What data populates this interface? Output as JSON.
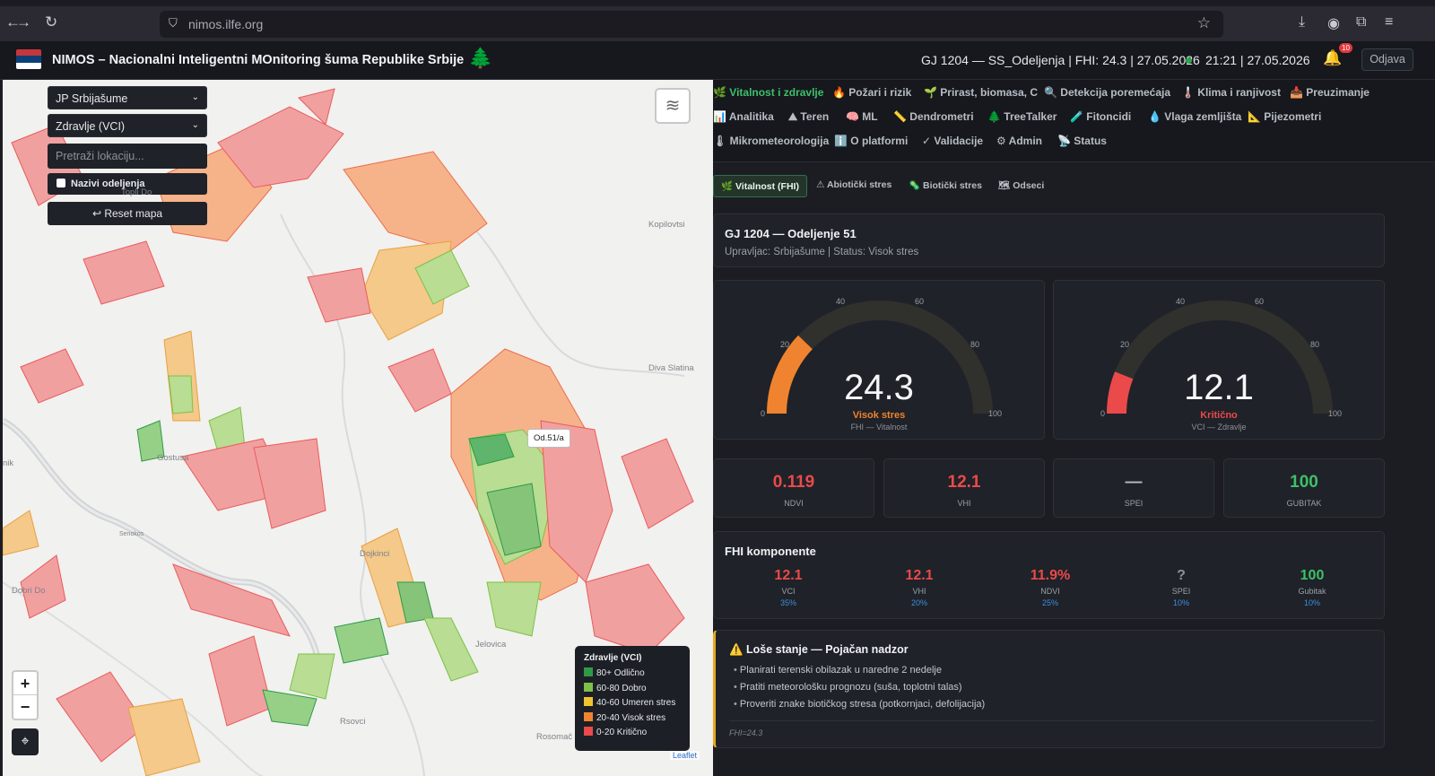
{
  "browser": {
    "url": "nimos.ilfe.org"
  },
  "header": {
    "title": "NIMOS – Nacionalni Inteligentni MOnitoring šuma Republike Srbije",
    "status": "GJ 1204 — SS_Odeljenja | FHI: 24.3 | 27.05.2026",
    "clock": "21:21 | 27.05.2026",
    "notifications": "10",
    "logout": "Odjava",
    "flag_colors": [
      "#c6363c",
      "#0c4076",
      "#ffffff"
    ]
  },
  "map_controls": {
    "owner_select": "JP Srbijašume",
    "layer_select": "Zdravlje (VCI)",
    "search_placeholder": "Pretraži lokaciju...",
    "names_checkbox": "Nazivi odeljenja",
    "reset": "↩ Reset mapa",
    "zoom_in": "+",
    "zoom_out": "−",
    "tooltip": "Od.51/a",
    "attribution": "Leaflet"
  },
  "map_places": [
    "Kopilovtsi",
    "Diva Slatina",
    "Gostusa",
    "Dojkinci",
    "Dobri Do",
    "Jelovica",
    "Rsovci",
    "Rosomač",
    "nik",
    "Topli Do",
    "Senokos"
  ],
  "legend": {
    "title": "Zdravlje (VCI)",
    "items": [
      {
        "label": "80+ Odlično",
        "color": "#2e9a46"
      },
      {
        "label": "60-80 Dobro",
        "color": "#7dc14a"
      },
      {
        "label": "40-60 Umeren stres",
        "color": "#f2c230"
      },
      {
        "label": "20-40 Visok stres",
        "color": "#f0832f"
      },
      {
        "label": "0-20 Kritično",
        "color": "#ea4a4a"
      }
    ]
  },
  "tabs": [
    "🌿 Vitalnost i zdravlje",
    "🔥 Požari i rizik",
    "🌱 Prirast, biomasa, C",
    "🔍 Detekcija poremećaja",
    "🌡️ Klima i ranjivost",
    "📥 Preuzimanje",
    "📊 Analitika",
    "⛰ Teren",
    "🧠 ML",
    "📏 Dendrometri",
    "🌲 TreeTalker",
    "🧪 Fitoncidi",
    "💧 Vlaga zemljišta",
    "📐 Pijezometri",
    "🌡 Mikrometeorologija",
    "ℹ️ O platformi",
    "✓ Validacije",
    "⚙ Admin",
    "📡 Status"
  ],
  "subtabs": [
    "🌿 Vitalnost (FHI)",
    "⚠ Abiotički stres",
    "🦠 Biotički stres",
    "🗺 Odseci"
  ],
  "info": {
    "title": "GJ 1204 — Odeljenje 51",
    "subtitle": "Upravljac: Srbijašume | Status: Visok stres"
  },
  "gauges": [
    {
      "value": "24.3",
      "level": 24.3,
      "label": "Visok stres",
      "sub": "FHI — Vitalnost",
      "color": "#f0832f"
    },
    {
      "value": "12.1",
      "level": 12.1,
      "label": "Kritično",
      "sub": "VCI — Zdravlje",
      "color": "#ea4a4a"
    }
  ],
  "gauge_ticks": [
    "0",
    "20",
    "40",
    "60",
    "80",
    "100"
  ],
  "stats": [
    {
      "value": "0.119",
      "label": "NDVI",
      "color": "#ea4a4a"
    },
    {
      "value": "12.1",
      "label": "VHI",
      "color": "#ea4a4a"
    },
    {
      "value": "—",
      "label": "SPEI",
      "color": "#b8bdc5"
    },
    {
      "value": "100",
      "label": "GUBITAK",
      "color": "#3fbf6a"
    }
  ],
  "components": {
    "title": "FHI komponente",
    "items": [
      {
        "value": "12.1",
        "name": "VCI",
        "weight": "35%",
        "color": "#ea4a4a"
      },
      {
        "value": "12.1",
        "name": "VHI",
        "weight": "20%",
        "color": "#ea4a4a"
      },
      {
        "value": "11.9%",
        "name": "NDVI",
        "weight": "25%",
        "color": "#ea4a4a"
      },
      {
        "value": "?",
        "name": "SPEI",
        "weight": "10%",
        "color": "#8d929a"
      },
      {
        "value": "100",
        "name": "Gubitak",
        "weight": "10%",
        "color": "#3fbf6a"
      }
    ]
  },
  "alert": {
    "title": "⚠️ Loše stanje — Pojačan nadzor",
    "items": [
      "Planirati terenski obilazak u naredne 2 nedelje",
      "Pratiti meteorološku prognozu (suša, toplotni talas)",
      "Proveriti znake biotičkog stresa (potkornjaci, defolijacija)"
    ],
    "footer": "FHI=24.3"
  }
}
